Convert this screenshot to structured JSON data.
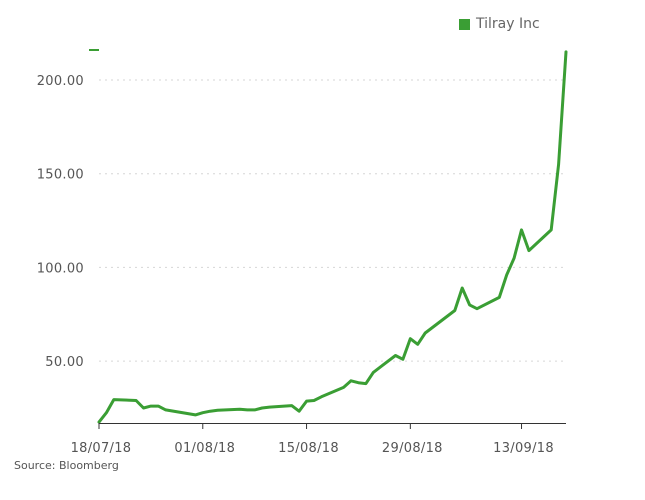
{
  "legend": {
    "label": "Tilray Inc"
  },
  "source": "Source: Bloomberg",
  "colors": {
    "line": "#3a9e34",
    "grid": "#d6d6d6",
    "axis": "#333333"
  },
  "chart_data": {
    "type": "line",
    "title": "",
    "xlabel": "",
    "ylabel": "",
    "legend_position": "top-right",
    "grid": true,
    "y_ticks": [
      {
        "value": 50,
        "label": "50.00"
      },
      {
        "value": 100,
        "label": "100.00"
      },
      {
        "value": 150,
        "label": "150.00"
      },
      {
        "value": 200,
        "label": "200.00"
      }
    ],
    "x_ticks": [
      {
        "date": "2018-07-18",
        "label": "18/07/18"
      },
      {
        "date": "2018-08-01",
        "label": "01/08/18"
      },
      {
        "date": "2018-08-15",
        "label": "15/08/18"
      },
      {
        "date": "2018-08-29",
        "label": "29/08/18"
      },
      {
        "date": "2018-09-13",
        "label": "13/09/18"
      }
    ],
    "ylim": [
      17,
      216
    ],
    "xlim": [
      "2018-07-18",
      "2018-09-19"
    ],
    "series": [
      {
        "name": "Tilray Inc",
        "x": [
          "2018-07-18",
          "2018-07-19",
          "2018-07-20",
          "2018-07-23",
          "2018-07-24",
          "2018-07-25",
          "2018-07-26",
          "2018-07-27",
          "2018-07-30",
          "2018-07-31",
          "2018-08-01",
          "2018-08-02",
          "2018-08-03",
          "2018-08-06",
          "2018-08-07",
          "2018-08-08",
          "2018-08-09",
          "2018-08-10",
          "2018-08-13",
          "2018-08-14",
          "2018-08-15",
          "2018-08-16",
          "2018-08-17",
          "2018-08-20",
          "2018-08-21",
          "2018-08-22",
          "2018-08-23",
          "2018-08-24",
          "2018-08-27",
          "2018-08-28",
          "2018-08-29",
          "2018-08-30",
          "2018-08-31",
          "2018-09-04",
          "2018-09-05",
          "2018-09-06",
          "2018-09-07",
          "2018-09-10",
          "2018-09-11",
          "2018-09-12",
          "2018-09-13",
          "2018-09-14",
          "2018-09-17",
          "2018-09-18",
          "2018-09-19"
        ],
        "y": [
          17.5,
          22.5,
          29.5,
          29,
          25,
          26,
          26,
          24,
          22,
          21.3,
          22.5,
          23.3,
          23.8,
          24.3,
          24,
          24,
          25,
          25.5,
          26.3,
          23.3,
          28.7,
          29,
          31,
          36,
          39.5,
          38.5,
          38,
          44,
          53,
          51,
          62,
          59,
          65,
          77,
          89,
          80,
          78,
          84,
          96,
          105,
          120,
          109,
          120,
          155,
          215
        ]
      }
    ]
  }
}
